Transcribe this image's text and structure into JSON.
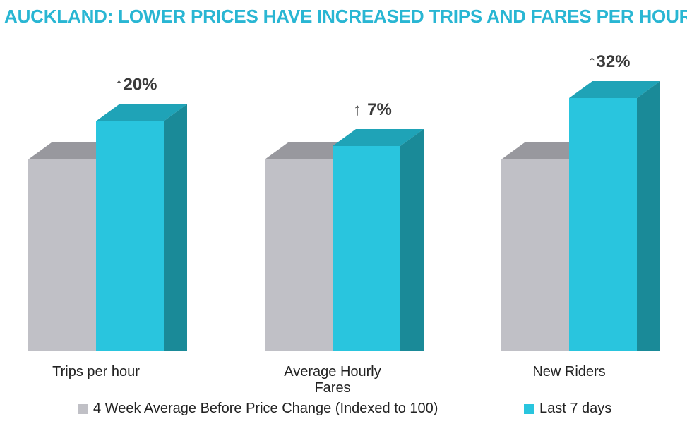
{
  "chart_data": {
    "type": "bar",
    "title": "AUCKLAND: LOWER PRICES HAVE INCREASED TRIPS AND FARES PER HOUR",
    "title_color": "#29B6D3",
    "categories": [
      "Trips per hour",
      "Average Hourly Fares",
      "New Riders"
    ],
    "series": [
      {
        "name": "4 Week Average Before Price Change (Indexed to 100)",
        "values": [
          100,
          100,
          100
        ],
        "color": "#C0C0C6",
        "top_color": "#98989E"
      },
      {
        "name": "Last 7 days",
        "values": [
          120,
          107,
          132
        ],
        "color": "#29C5DE",
        "side_color": "#1A8A98",
        "top_color": "#1FA3B7"
      }
    ],
    "change_labels": [
      "20%",
      "7%",
      "32%"
    ],
    "change_arrow": "↑",
    "xlabel": "",
    "ylabel": "",
    "ylim": [
      0,
      132
    ],
    "grid": false,
    "legend_position": "bottom"
  }
}
